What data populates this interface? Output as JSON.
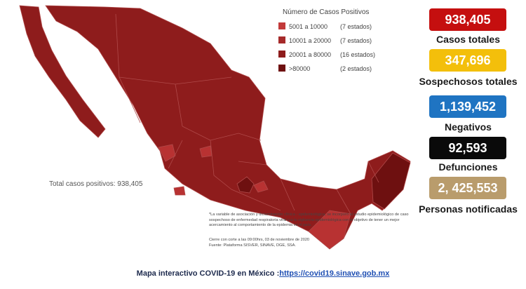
{
  "legend": {
    "title": "Número de Casos Positivos",
    "rows": [
      {
        "range": "5001 a 10000",
        "count": "(7 estados)"
      },
      {
        "range": "10001 a 20000",
        "count": "(7 estados)"
      },
      {
        "range": "20001 a 80000",
        "count": "(16 estados)"
      },
      {
        "range": ">80000",
        "count": "(2 estados)"
      }
    ]
  },
  "stats": [
    {
      "value": "938,405",
      "label": "Casos totales"
    },
    {
      "value": "347,696",
      "label": "Sospechosos totales"
    },
    {
      "value": "1,139,452",
      "label": "Negativos"
    },
    {
      "value": "92,593",
      "label": "Defunciones"
    },
    {
      "value": "2, 425,553",
      "label": "Personas notificadas"
    }
  ],
  "map_total": "Total casos positivos: 938,405",
  "footnote": {
    "note": "*La variable de asociación y dictaminación clínica - epidemiológica, se incorporó al estudio epidemiológico de caso sospechoso de enfermedad respiratoria viral y a la vigilancia epidemiológica con el objetivo de tener un mejor acercamiento al comportamiento de la epidemia en el país.",
    "closing": "Cierre con corte a las 09:00hrs, 03 de noviembre de 2020",
    "source": "Fuente: Plataforma SISVER, SINAVE, DGE, SSA."
  },
  "footer": {
    "text": "Mapa interactivo COVID-19 en México :",
    "link": "https://covid19.sinave.gob.mx"
  }
}
